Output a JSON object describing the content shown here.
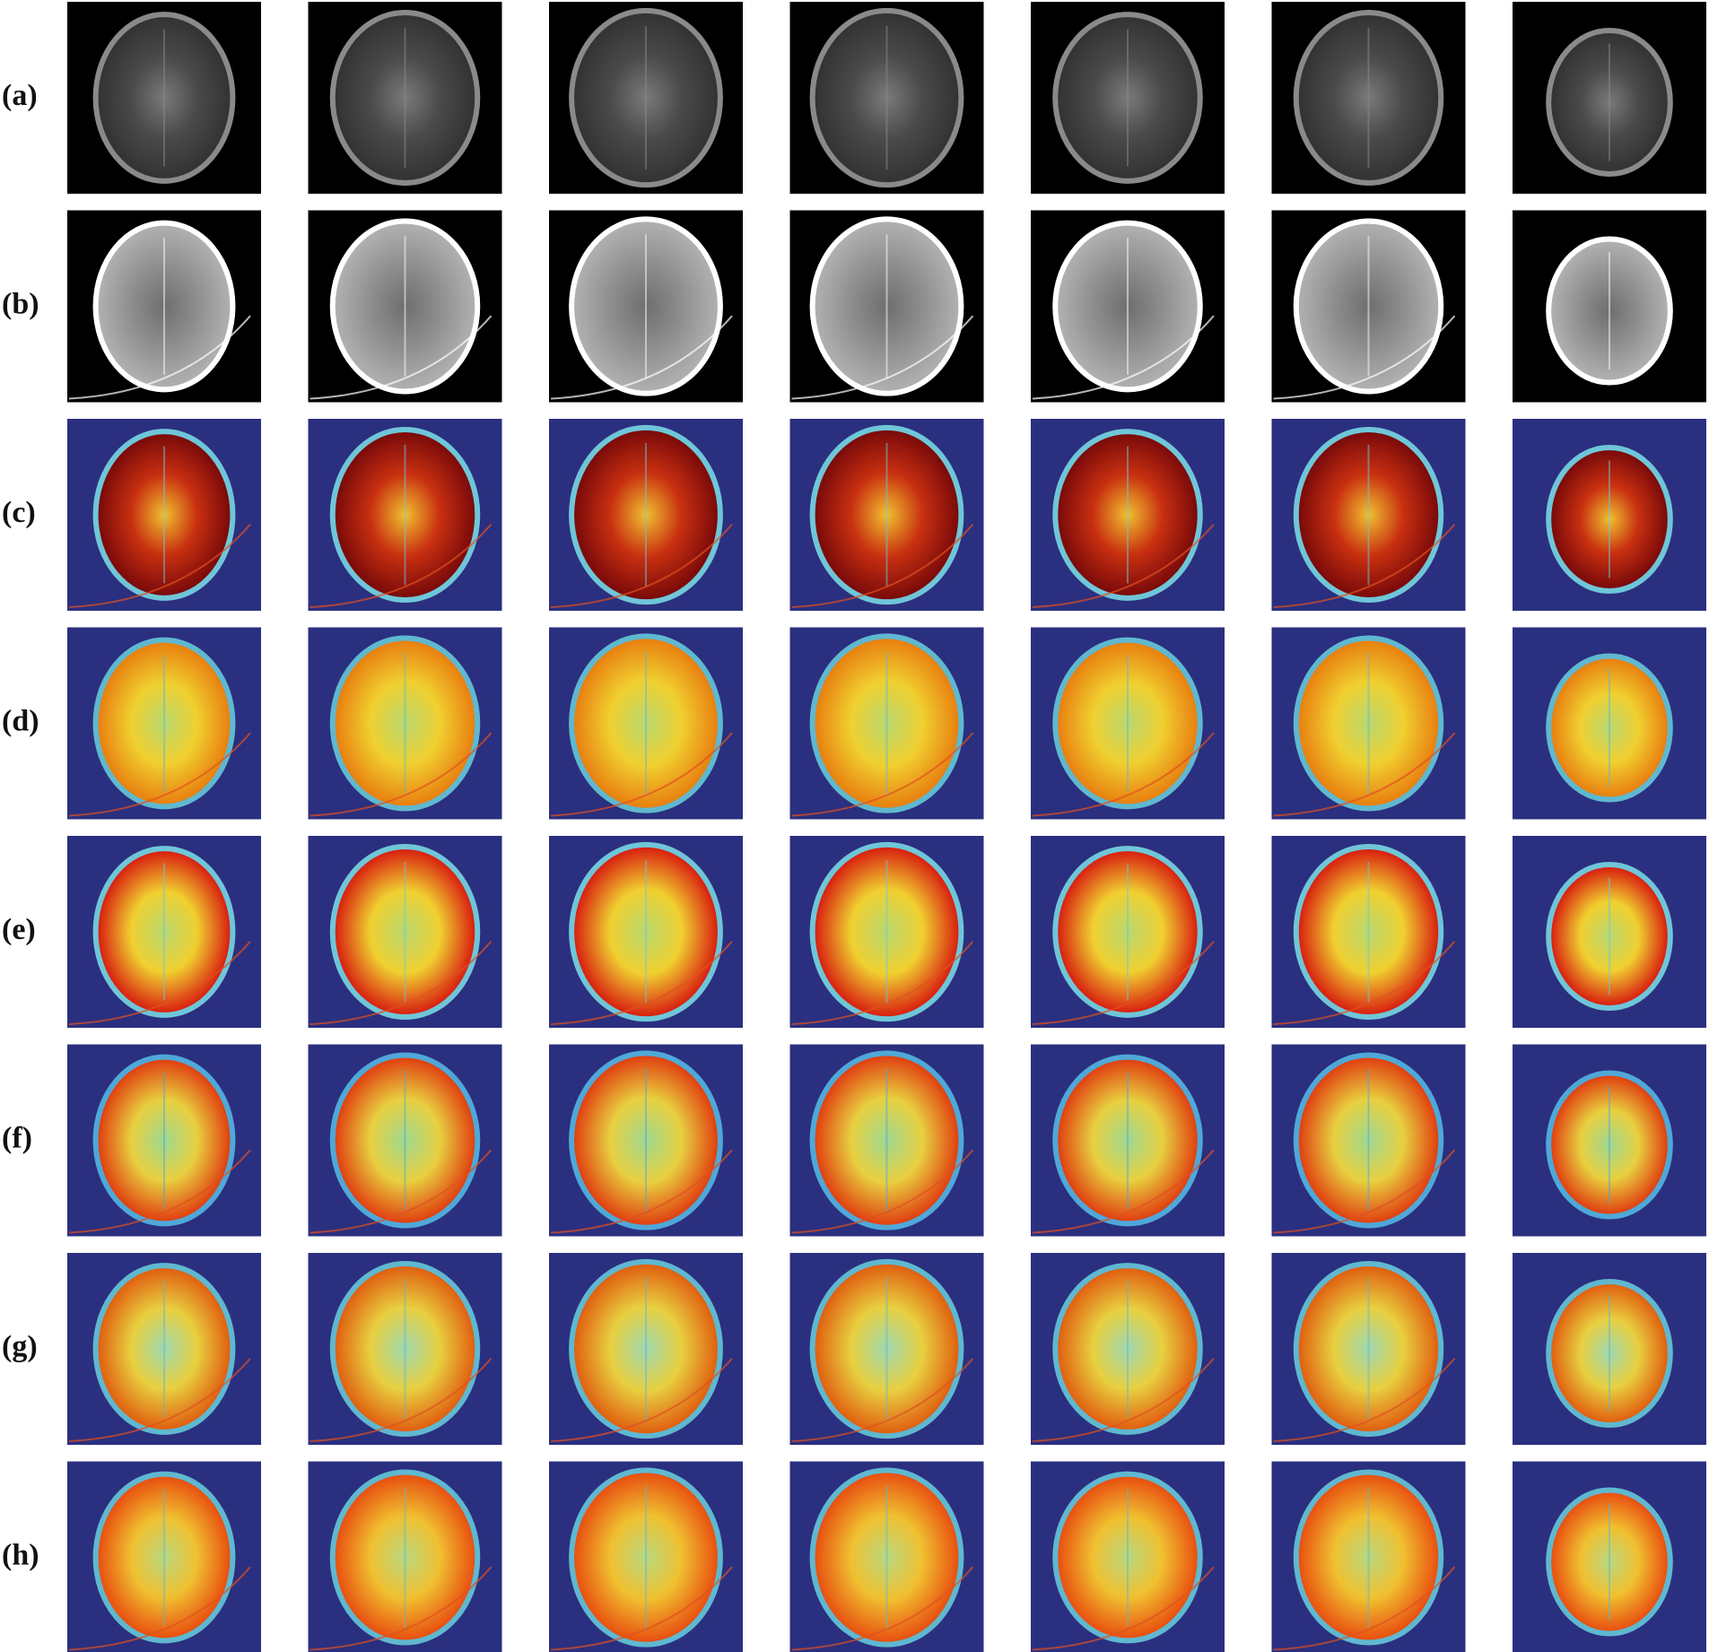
{
  "rows": [
    {
      "label": "(a)"
    },
    {
      "label": "(b)"
    },
    {
      "label": "(c)"
    },
    {
      "label": "(d)"
    },
    {
      "label": "(e)"
    },
    {
      "label": "(f)"
    },
    {
      "label": "(g)"
    },
    {
      "label": "(h)"
    }
  ]
}
